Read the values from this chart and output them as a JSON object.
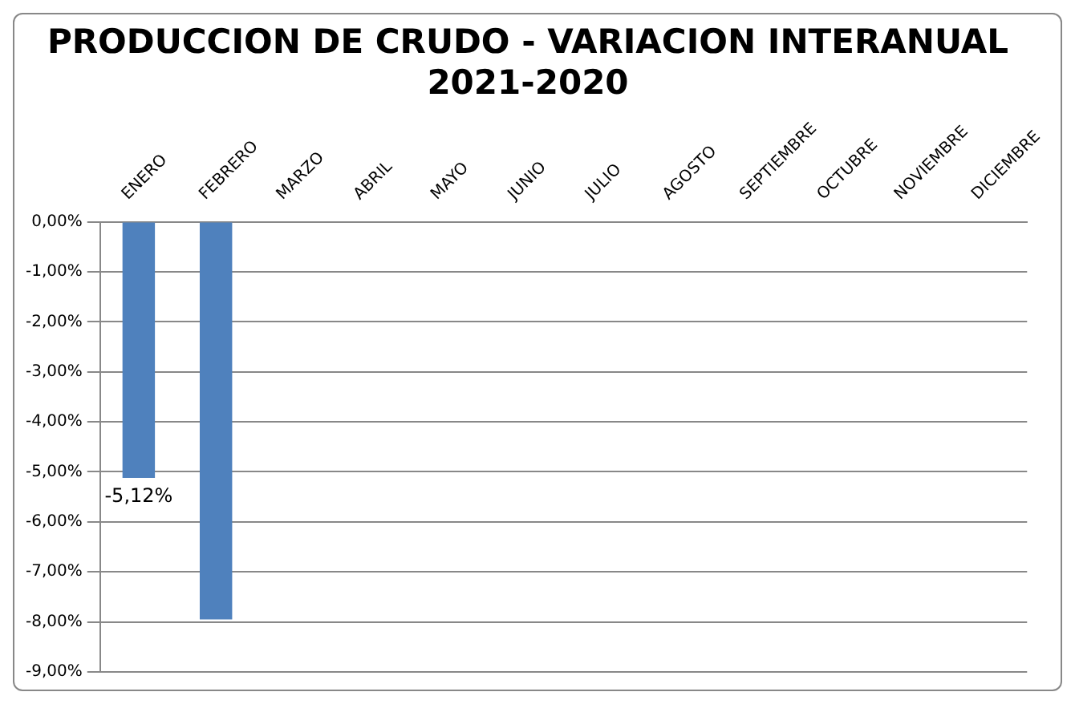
{
  "chart_data": {
    "type": "bar",
    "title": [
      "PRODUCCION DE CRUDO - VARIACION INTERANUAL",
      "2021-2020"
    ],
    "categories": [
      "ENERO",
      "FEBRERO",
      "MARZO",
      "ABRIL",
      "MAYO",
      "JUNIO",
      "JULIO",
      "AGOSTO",
      "SEPTIEMBRE",
      "OCTUBRE",
      "NOVIEMBRE",
      "DICIEMBRE"
    ],
    "values": [
      -5.12,
      -7.95,
      null,
      null,
      null,
      null,
      null,
      null,
      null,
      null,
      null,
      null
    ],
    "value_labels": [
      "-5,12%",
      null,
      null,
      null,
      null,
      null,
      null,
      null,
      null,
      null,
      null,
      null
    ],
    "color": "#4f81bd",
    "ylim": [
      -9,
      0
    ],
    "yticks": [
      {
        "value": 0,
        "label": "0,00%"
      },
      {
        "value": -1,
        "label": "-1,00%"
      },
      {
        "value": -2,
        "label": "-2,00%"
      },
      {
        "value": -3,
        "label": "-3,00%"
      },
      {
        "value": -4,
        "label": "-4,00%"
      },
      {
        "value": -5,
        "label": "-5,00%"
      },
      {
        "value": -6,
        "label": "-6,00%"
      },
      {
        "value": -7,
        "label": "-7,00%"
      },
      {
        "value": -8,
        "label": "-8,00%"
      },
      {
        "value": -9,
        "label": "-9,00%"
      }
    ],
    "grid": "y",
    "legend": false
  }
}
